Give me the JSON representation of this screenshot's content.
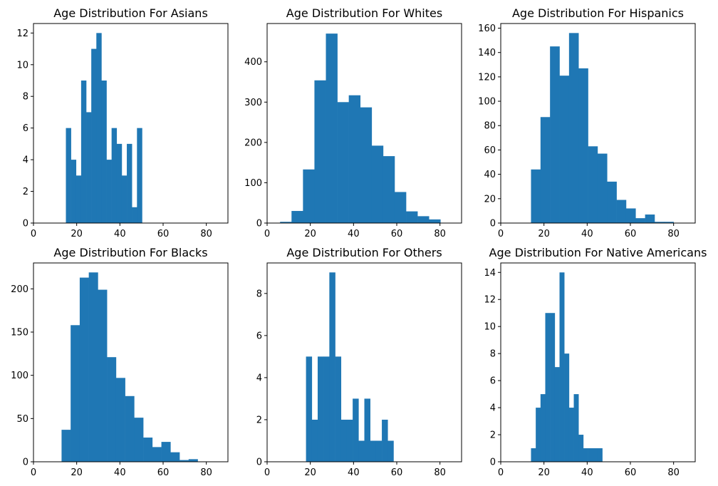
{
  "chart_data": [
    {
      "type": "bar",
      "title": "Age Distribution For Asians",
      "xlabel": "",
      "ylabel": "",
      "xlim": [
        0,
        90
      ],
      "ylim": [
        0,
        12.6
      ],
      "xticks": [
        0,
        20,
        40,
        60,
        80
      ],
      "yticks": [
        0,
        2,
        4,
        6,
        8,
        10,
        12
      ],
      "color": "#1f77b4",
      "bins": [
        {
          "x0": 15,
          "x1": 17.35,
          "y": 6
        },
        {
          "x0": 17.35,
          "x1": 19.7,
          "y": 4
        },
        {
          "x0": 19.7,
          "x1": 22.05,
          "y": 3
        },
        {
          "x0": 22.05,
          "x1": 24.4,
          "y": 9
        },
        {
          "x0": 24.4,
          "x1": 26.75,
          "y": 7
        },
        {
          "x0": 26.75,
          "x1": 29.1,
          "y": 11
        },
        {
          "x0": 29.1,
          "x1": 31.45,
          "y": 12
        },
        {
          "x0": 31.45,
          "x1": 33.8,
          "y": 9
        },
        {
          "x0": 33.8,
          "x1": 36.15,
          "y": 4
        },
        {
          "x0": 36.15,
          "x1": 38.5,
          "y": 6
        },
        {
          "x0": 38.5,
          "x1": 40.85,
          "y": 5
        },
        {
          "x0": 40.85,
          "x1": 43.2,
          "y": 3
        },
        {
          "x0": 43.2,
          "x1": 45.55,
          "y": 5
        },
        {
          "x0": 45.55,
          "x1": 47.9,
          "y": 1
        },
        {
          "x0": 47.9,
          "x1": 50.25,
          "y": 6
        }
      ]
    },
    {
      "type": "bar",
      "title": "Age Distribution For Whites",
      "xlabel": "",
      "ylabel": "",
      "xlim": [
        0,
        90
      ],
      "ylim": [
        0,
        495
      ],
      "xticks": [
        0,
        20,
        40,
        60,
        80
      ],
      "yticks": [
        0,
        100,
        200,
        300,
        400
      ],
      "color": "#1f77b4",
      "bins": [
        {
          "x0": 6,
          "x1": 11.3,
          "y": 3
        },
        {
          "x0": 11.3,
          "x1": 16.6,
          "y": 30
        },
        {
          "x0": 16.6,
          "x1": 21.9,
          "y": 133
        },
        {
          "x0": 21.9,
          "x1": 27.2,
          "y": 354
        },
        {
          "x0": 27.2,
          "x1": 32.5,
          "y": 470
        },
        {
          "x0": 32.5,
          "x1": 37.8,
          "y": 300
        },
        {
          "x0": 37.8,
          "x1": 43.1,
          "y": 317
        },
        {
          "x0": 43.1,
          "x1": 48.4,
          "y": 287
        },
        {
          "x0": 48.4,
          "x1": 53.7,
          "y": 192
        },
        {
          "x0": 53.7,
          "x1": 59.0,
          "y": 166
        },
        {
          "x0": 59.0,
          "x1": 64.3,
          "y": 77
        },
        {
          "x0": 64.3,
          "x1": 69.6,
          "y": 29
        },
        {
          "x0": 69.6,
          "x1": 74.9,
          "y": 17
        },
        {
          "x0": 74.9,
          "x1": 80.2,
          "y": 9
        }
      ]
    },
    {
      "type": "bar",
      "title": "Age Distribution For Hispanics",
      "xlabel": "",
      "ylabel": "",
      "xlim": [
        0,
        90
      ],
      "ylim": [
        0,
        163.8
      ],
      "xticks": [
        0,
        20,
        40,
        60,
        80
      ],
      "yticks": [
        0,
        20,
        40,
        60,
        80,
        100,
        120,
        140,
        160
      ],
      "color": "#1f77b4",
      "bins": [
        {
          "x0": 14,
          "x1": 18.4,
          "y": 44
        },
        {
          "x0": 18.4,
          "x1": 22.8,
          "y": 87
        },
        {
          "x0": 22.8,
          "x1": 27.2,
          "y": 145
        },
        {
          "x0": 27.2,
          "x1": 31.6,
          "y": 121
        },
        {
          "x0": 31.6,
          "x1": 36.0,
          "y": 156
        },
        {
          "x0": 36.0,
          "x1": 40.4,
          "y": 127
        },
        {
          "x0": 40.4,
          "x1": 44.8,
          "y": 63
        },
        {
          "x0": 44.8,
          "x1": 49.2,
          "y": 57
        },
        {
          "x0": 49.2,
          "x1": 53.6,
          "y": 34
        },
        {
          "x0": 53.6,
          "x1": 58.0,
          "y": 19
        },
        {
          "x0": 58.0,
          "x1": 62.4,
          "y": 12
        },
        {
          "x0": 62.4,
          "x1": 66.8,
          "y": 4
        },
        {
          "x0": 66.8,
          "x1": 71.2,
          "y": 7
        },
        {
          "x0": 71.2,
          "x1": 75.6,
          "y": 1
        },
        {
          "x0": 75.6,
          "x1": 80.0,
          "y": 1
        }
      ]
    },
    {
      "type": "bar",
      "title": "Age Distribution For Blacks",
      "xlabel": "",
      "ylabel": "",
      "xlim": [
        0,
        90
      ],
      "ylim": [
        0,
        229.95
      ],
      "xticks": [
        0,
        20,
        40,
        60,
        80
      ],
      "yticks": [
        0,
        50,
        100,
        150,
        200
      ],
      "color": "#1f77b4",
      "bins": [
        {
          "x0": 13,
          "x1": 17.2,
          "y": 37
        },
        {
          "x0": 17.2,
          "x1": 21.4,
          "y": 158
        },
        {
          "x0": 21.4,
          "x1": 25.6,
          "y": 213
        },
        {
          "x0": 25.6,
          "x1": 29.8,
          "y": 219
        },
        {
          "x0": 29.8,
          "x1": 34.0,
          "y": 199
        },
        {
          "x0": 34.0,
          "x1": 38.2,
          "y": 121
        },
        {
          "x0": 38.2,
          "x1": 42.4,
          "y": 97
        },
        {
          "x0": 42.4,
          "x1": 46.6,
          "y": 76
        },
        {
          "x0": 46.6,
          "x1": 50.8,
          "y": 51
        },
        {
          "x0": 50.8,
          "x1": 55.0,
          "y": 28
        },
        {
          "x0": 55.0,
          "x1": 59.2,
          "y": 17
        },
        {
          "x0": 59.2,
          "x1": 63.4,
          "y": 23
        },
        {
          "x0": 63.4,
          "x1": 67.6,
          "y": 11
        },
        {
          "x0": 67.6,
          "x1": 71.8,
          "y": 2
        },
        {
          "x0": 71.8,
          "x1": 76.0,
          "y": 3
        }
      ]
    },
    {
      "type": "bar",
      "title": "Age Distribution For Others",
      "xlabel": "",
      "ylabel": "",
      "xlim": [
        0,
        90
      ],
      "ylim": [
        0,
        9.45
      ],
      "xticks": [
        0,
        20,
        40,
        60,
        80
      ],
      "yticks": [
        0,
        2,
        4,
        6,
        8
      ],
      "color": "#1f77b4",
      "bins": [
        {
          "x0": 18,
          "x1": 20.7,
          "y": 5
        },
        {
          "x0": 20.7,
          "x1": 23.4,
          "y": 2
        },
        {
          "x0": 23.4,
          "x1": 26.1,
          "y": 5
        },
        {
          "x0": 26.1,
          "x1": 28.8,
          "y": 5
        },
        {
          "x0": 28.8,
          "x1": 31.5,
          "y": 9
        },
        {
          "x0": 31.5,
          "x1": 34.2,
          "y": 5
        },
        {
          "x0": 34.2,
          "x1": 36.9,
          "y": 2
        },
        {
          "x0": 36.9,
          "x1": 39.6,
          "y": 2
        },
        {
          "x0": 39.6,
          "x1": 42.3,
          "y": 3
        },
        {
          "x0": 42.3,
          "x1": 45.0,
          "y": 1
        },
        {
          "x0": 45.0,
          "x1": 47.7,
          "y": 3
        },
        {
          "x0": 47.7,
          "x1": 50.4,
          "y": 1
        },
        {
          "x0": 50.4,
          "x1": 53.1,
          "y": 1
        },
        {
          "x0": 53.1,
          "x1": 55.8,
          "y": 2
        },
        {
          "x0": 55.8,
          "x1": 58.5,
          "y": 1
        }
      ]
    },
    {
      "type": "bar",
      "title": "Age Distribution For Native Americans",
      "xlabel": "",
      "ylabel": "",
      "xlim": [
        0,
        90
      ],
      "ylim": [
        0,
        14.7
      ],
      "xticks": [
        0,
        20,
        40,
        60,
        80
      ],
      "yticks": [
        0,
        2,
        4,
        6,
        8,
        10,
        12,
        14
      ],
      "color": "#1f77b4",
      "bins": [
        {
          "x0": 14,
          "x1": 16.2,
          "y": 1
        },
        {
          "x0": 16.2,
          "x1": 18.4,
          "y": 4
        },
        {
          "x0": 18.4,
          "x1": 20.6,
          "y": 5
        },
        {
          "x0": 20.6,
          "x1": 22.8,
          "y": 11
        },
        {
          "x0": 22.8,
          "x1": 25.0,
          "y": 11
        },
        {
          "x0": 25.0,
          "x1": 27.2,
          "y": 7
        },
        {
          "x0": 27.2,
          "x1": 29.4,
          "y": 14
        },
        {
          "x0": 29.4,
          "x1": 31.6,
          "y": 8
        },
        {
          "x0": 31.6,
          "x1": 33.8,
          "y": 4
        },
        {
          "x0": 33.8,
          "x1": 36.0,
          "y": 5
        },
        {
          "x0": 36.0,
          "x1": 38.2,
          "y": 2
        },
        {
          "x0": 38.2,
          "x1": 40.4,
          "y": 1
        },
        {
          "x0": 40.4,
          "x1": 42.6,
          "y": 1
        },
        {
          "x0": 42.6,
          "x1": 44.8,
          "y": 1
        },
        {
          "x0": 44.8,
          "x1": 47.0,
          "y": 1
        }
      ]
    }
  ]
}
